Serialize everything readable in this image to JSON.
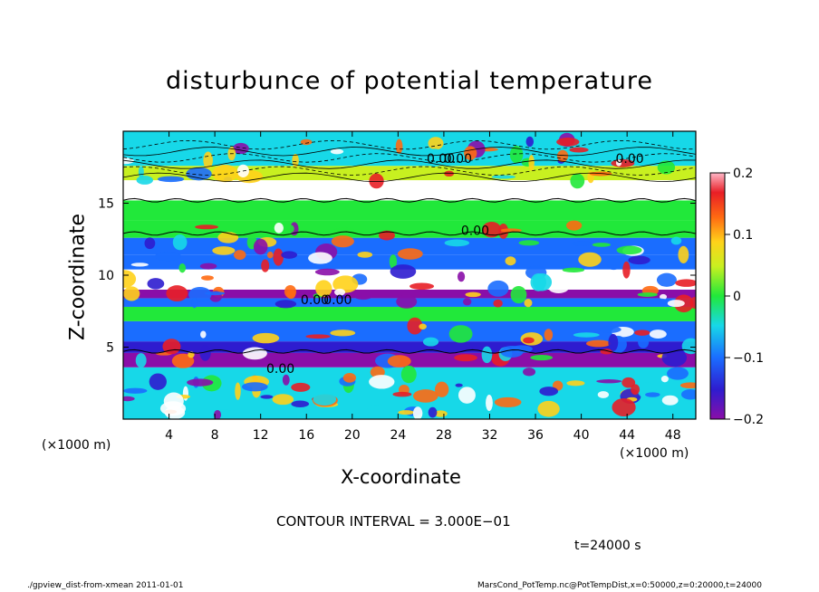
{
  "title": "disturbunce of potential temperature",
  "chart_data": {
    "type": "heatmap",
    "title": "disturbunce of potential temperature",
    "xlabel": "X-coordinate",
    "ylabel": "Z-coordinate",
    "x_unit": "(×1000 m)",
    "y_unit": "(×1000 m)",
    "xlim": [
      0,
      50
    ],
    "ylim": [
      0,
      20
    ],
    "x_ticks": [
      "4",
      "8",
      "12",
      "16",
      "20",
      "24",
      "28",
      "32",
      "36",
      "40",
      "44",
      "48"
    ],
    "y_ticks": [
      "5",
      "10",
      "15"
    ],
    "colorbar": {
      "range": [
        -0.2,
        0.2
      ],
      "ticks": [
        "0.2",
        "0.1",
        "0",
        "−0.1",
        "−0.2"
      ]
    },
    "contour_labels": [
      "0.00",
      "0.00",
      "0.00",
      "0.00",
      "0.00",
      "0.00",
      "0.00"
    ],
    "bands": [
      {
        "z0": 0.0,
        "z1": 3.6,
        "value": -0.05
      },
      {
        "z0": 3.6,
        "z1": 4.6,
        "value": -0.22
      },
      {
        "z0": 4.6,
        "z1": 5.4,
        "value": -0.14
      },
      {
        "z0": 5.4,
        "z1": 6.8,
        "value": -0.09
      },
      {
        "z0": 6.8,
        "z1": 7.8,
        "value": -0.02
      },
      {
        "z0": 7.8,
        "z1": 8.4,
        "value": -0.12
      },
      {
        "z0": 8.4,
        "z1": 9.0,
        "value": -0.22
      },
      {
        "z0": 9.0,
        "z1": 10.4,
        "value": -0.3
      },
      {
        "z0": 10.4,
        "z1": 11.4,
        "value": -0.12
      },
      {
        "z0": 11.4,
        "z1": 12.6,
        "value": -0.08
      },
      {
        "z0": 12.6,
        "z1": 13.8,
        "value": -0.02
      },
      {
        "z0": 13.8,
        "z1": 15.2,
        "value": 0.01
      },
      {
        "z0": 15.2,
        "z1": 16.6,
        "value": -0.3
      },
      {
        "z0": 16.6,
        "z1": 17.6,
        "value": 0.05
      },
      {
        "z0": 17.6,
        "z1": 20.0,
        "value": -0.04
      }
    ]
  },
  "annotations": {
    "contour_interval": "CONTOUR INTERVAL = 3.000E−01",
    "time": "t=24000 s",
    "footer_left": "./gpview_dist-from-xmean  2011-01-01",
    "footer_right": "MarsCond_PotTemp.nc@PotTempDist,x=0:50000,z=0:20000,t=24000"
  }
}
